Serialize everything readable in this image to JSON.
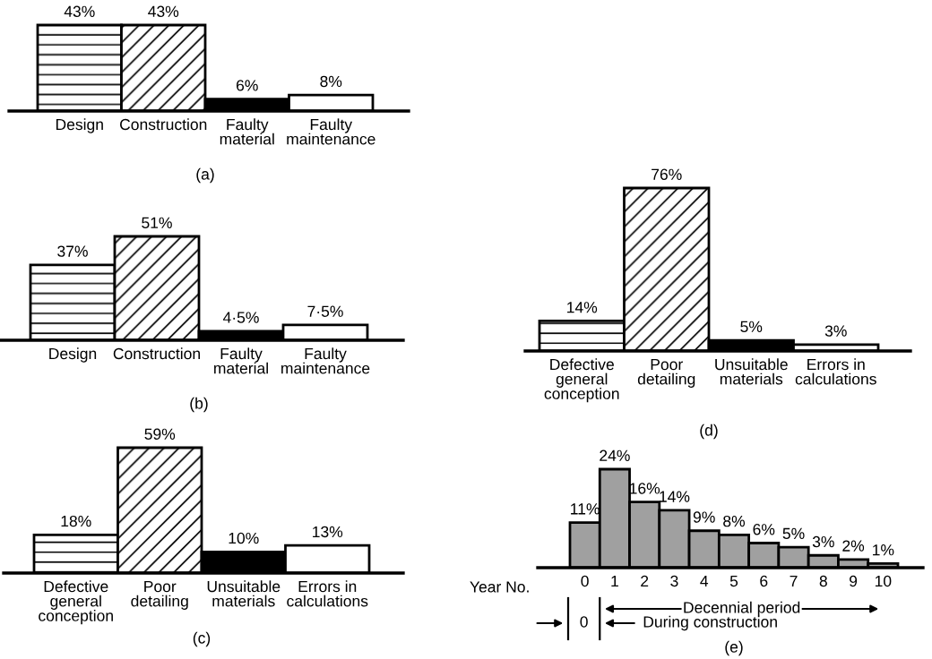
{
  "chart_data": [
    {
      "type": "bar",
      "categories": [
        "Design",
        "Construction",
        "Faulty\nmaterial",
        "Faulty\nmaintenance"
      ],
      "values": [
        43,
        43,
        6,
        8
      ],
      "colors": [
        "#ffffff",
        "#ffffff",
        "#000000",
        "#ffffff"
      ],
      "value_labels": [
        "43%",
        "43%",
        "6%",
        "8%"
      ],
      "tick_labels": "x",
      "annotations": [
        "(a)"
      ]
    },
    {
      "type": "bar",
      "categories": [
        "Design",
        "Construction",
        "Faulty\nmaterial",
        "Faulty\nmaintenance"
      ],
      "values": [
        37,
        51,
        4.5,
        7.5
      ],
      "colors": [
        "#ffffff",
        "#ffffff",
        "#000000",
        "#ffffff"
      ],
      "value_labels": [
        "37%",
        "51%",
        "4·5%",
        "7·5%"
      ],
      "tick_labels": "x",
      "annotations": [
        "(b)"
      ]
    },
    {
      "type": "bar",
      "categories": [
        "Defective\ngeneral\nconception",
        "Poor\ndetailing",
        "Unsuitable\nmaterials",
        "Errors in\ncalculations"
      ],
      "values": [
        18,
        59,
        10,
        13
      ],
      "colors": [
        "#ffffff",
        "#ffffff",
        "#000000",
        "#ffffff"
      ],
      "value_labels": [
        "18%",
        "59%",
        "10%",
        "13%"
      ],
      "tick_labels": "x",
      "annotations": [
        "(c)"
      ]
    },
    {
      "type": "bar",
      "categories": [
        "Defective\ngeneral\nconception",
        "Poor\ndetailing",
        "Unsuitable\nmaterials",
        "Errors in\ncalculations"
      ],
      "values": [
        14,
        76,
        5,
        3
      ],
      "colors": [
        "#ffffff",
        "#ffffff",
        "#000000",
        "#ffffff"
      ],
      "value_labels": [
        "14%",
        "76%",
        "5%",
        "3%"
      ],
      "tick_labels": "x",
      "annotations": [
        "(d)"
      ]
    },
    {
      "type": "bar",
      "categories": [
        "0",
        "1",
        "2",
        "3",
        "4",
        "5",
        "6",
        "7",
        "8",
        "9",
        "10"
      ],
      "values": [
        11,
        24,
        16,
        14,
        9,
        8,
        6,
        5,
        3,
        2,
        1
      ],
      "colors": [
        "#a0a0a0",
        "#a0a0a0",
        "#a0a0a0",
        "#a0a0a0",
        "#a0a0a0",
        "#a0a0a0",
        "#a0a0a0",
        "#a0a0a0",
        "#a0a0a0",
        "#a0a0a0",
        "#a0a0a0"
      ],
      "value_labels": [
        "11%",
        "24%",
        "16%",
        "14%",
        "9%",
        "8%",
        "6%",
        "5%",
        "3%",
        "2%",
        "1%"
      ],
      "xlabel": "Year No.",
      "tick_labels": "x",
      "annotations": [
        "Decennial period",
        "0",
        "During construction",
        "(e)"
      ]
    }
  ]
}
